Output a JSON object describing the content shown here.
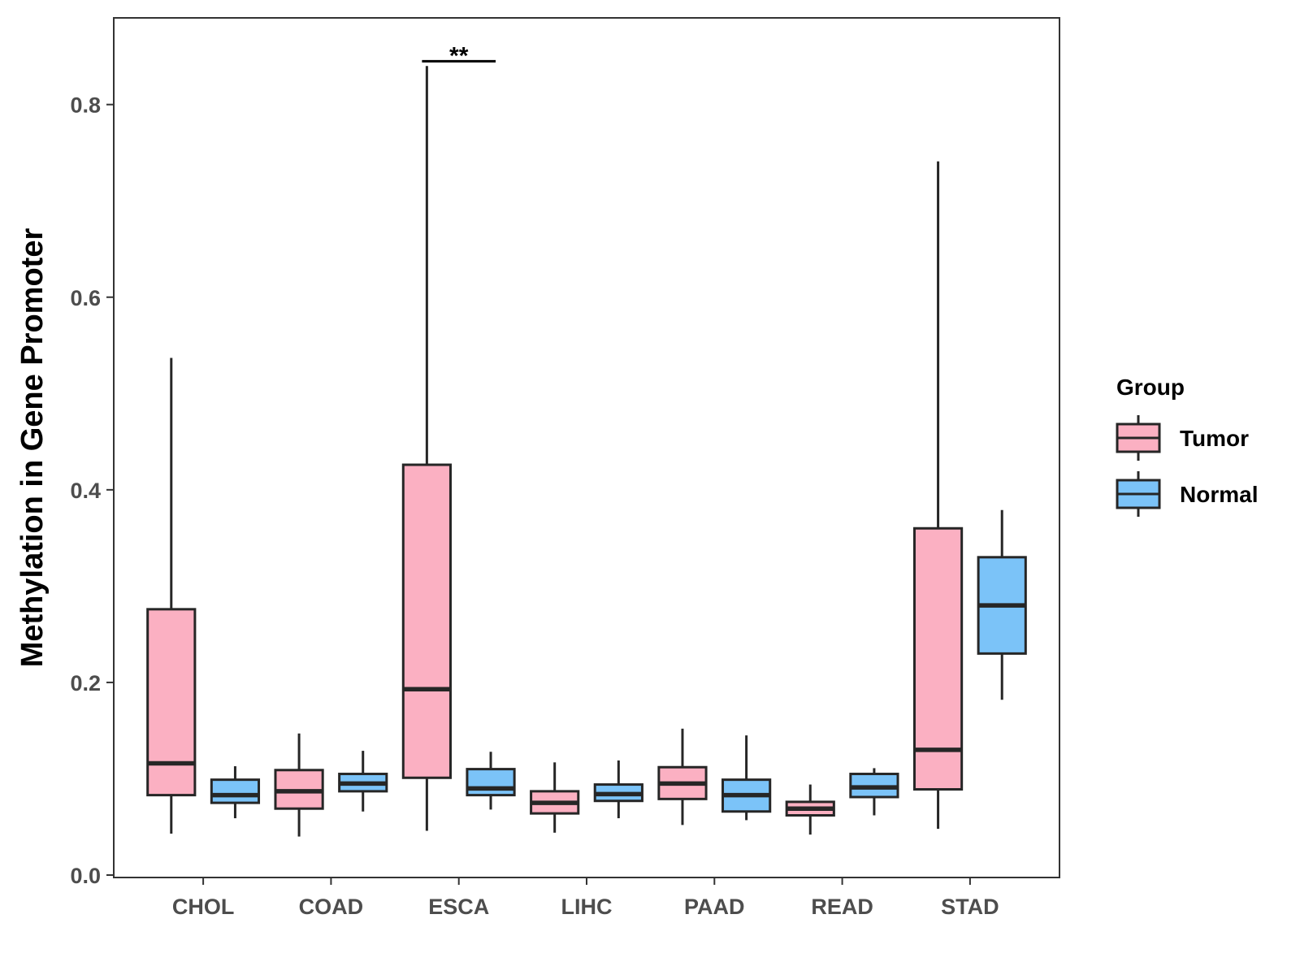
{
  "chart_data": {
    "type": "boxplot",
    "title": "",
    "xlabel": "",
    "ylabel": "Methylation in Gene Promoter",
    "ylim": [
      0,
      0.89
    ],
    "yticks": [
      0.0,
      0.2,
      0.4,
      0.6,
      0.8
    ],
    "ytick_labels": [
      "0.0",
      "0.2",
      "0.4",
      "0.6",
      "0.8"
    ],
    "categories": [
      "CHOL",
      "COAD",
      "ESCA",
      "LIHC",
      "PAAD",
      "READ",
      "STAD"
    ],
    "legend": {
      "title": "Group",
      "position": "right",
      "entries": [
        {
          "name": "Tumor",
          "color": "#fbb0c2"
        },
        {
          "name": "Normal",
          "color": "#7bc3f8"
        }
      ]
    },
    "series": [
      {
        "name": "Tumor",
        "color": "#fbb0c2",
        "boxes": [
          {
            "min": 0.043,
            "q1": 0.083,
            "median": 0.116,
            "q3": 0.276,
            "max": 0.537
          },
          {
            "min": 0.04,
            "q1": 0.069,
            "median": 0.087,
            "q3": 0.109,
            "max": 0.147
          },
          {
            "min": 0.046,
            "q1": 0.101,
            "median": 0.193,
            "q3": 0.426,
            "max": 0.84
          },
          {
            "min": 0.044,
            "q1": 0.064,
            "median": 0.075,
            "q3": 0.087,
            "max": 0.117
          },
          {
            "min": 0.052,
            "q1": 0.079,
            "median": 0.095,
            "q3": 0.112,
            "max": 0.152
          },
          {
            "min": 0.042,
            "q1": 0.062,
            "median": 0.069,
            "q3": 0.076,
            "max": 0.094
          },
          {
            "min": 0.048,
            "q1": 0.089,
            "median": 0.13,
            "q3": 0.36,
            "max": 0.741
          }
        ]
      },
      {
        "name": "Normal",
        "color": "#7bc3f8",
        "boxes": [
          {
            "min": 0.059,
            "q1": 0.075,
            "median": 0.083,
            "q3": 0.099,
            "max": 0.113
          },
          {
            "min": 0.066,
            "q1": 0.087,
            "median": 0.095,
            "q3": 0.105,
            "max": 0.129
          },
          {
            "min": 0.068,
            "q1": 0.083,
            "median": 0.09,
            "q3": 0.11,
            "max": 0.128
          },
          {
            "min": 0.059,
            "q1": 0.077,
            "median": 0.084,
            "q3": 0.094,
            "max": 0.119
          },
          {
            "min": 0.057,
            "q1": 0.066,
            "median": 0.083,
            "q3": 0.099,
            "max": 0.145
          },
          {
            "min": 0.062,
            "q1": 0.081,
            "median": 0.091,
            "q3": 0.105,
            "max": 0.111
          },
          {
            "min": 0.182,
            "q1": 0.23,
            "median": 0.28,
            "q3": 0.33,
            "max": 0.379
          }
        ]
      }
    ],
    "annotations": [
      {
        "category": "ESCA",
        "label": "**",
        "y": 0.845
      }
    ]
  }
}
